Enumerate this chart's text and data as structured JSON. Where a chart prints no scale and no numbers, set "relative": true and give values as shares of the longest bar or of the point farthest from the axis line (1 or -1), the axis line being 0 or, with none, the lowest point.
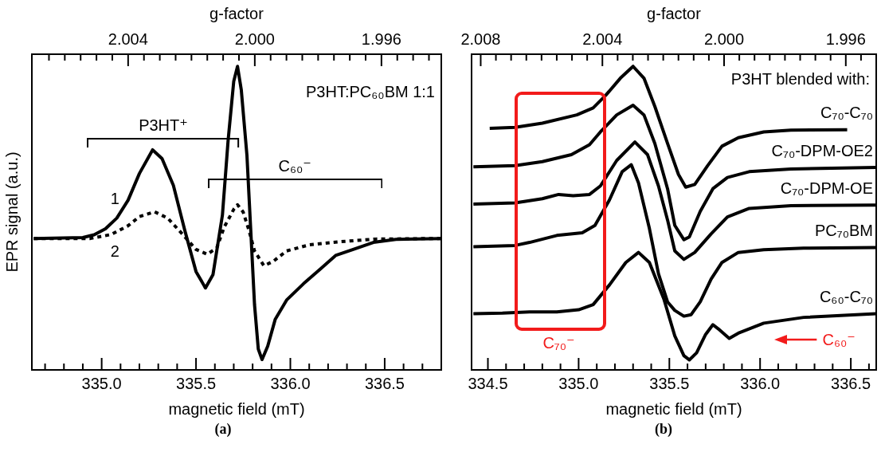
{
  "chart_data": [
    {
      "type": "line",
      "relative": true,
      "xlabel": "magnetic field (mT)",
      "ylabel": "EPR signal (a.u.)",
      "x2label": "g-factor",
      "xlim": [
        334.63,
        336.8
      ],
      "xticks": [
        {
          "value": 334.7,
          "label": null
        },
        {
          "value": 334.8,
          "label": null
        },
        {
          "value": 334.9,
          "label": null
        },
        {
          "value": 335,
          "label": "335.0"
        },
        {
          "value": 335.1,
          "label": null
        },
        {
          "value": 335.2,
          "label": null
        },
        {
          "value": 335.3,
          "label": null
        },
        {
          "value": 335.4,
          "label": null
        },
        335.5,
        {
          "value": 335.6,
          "label": null
        },
        {
          "value": 335.7,
          "label": null
        },
        {
          "value": 335.8,
          "label": null
        },
        {
          "value": 335.9,
          "label": null
        },
        {
          "value": 336,
          "label": "336.0"
        },
        {
          "value": 336.1,
          "label": null
        },
        {
          "value": 336.2,
          "label": null
        },
        {
          "value": 336.3,
          "label": null
        },
        {
          "value": 336.4,
          "label": null
        },
        336.5,
        {
          "value": 336.6,
          "label": null
        },
        {
          "value": 336.7,
          "label": null
        }
      ],
      "x2lim": [
        2.00704,
        1.99411
      ],
      "x2ticks": [
        {
          "value": 2.0065,
          "label": null
        },
        {
          "value": 2.006,
          "label": null
        },
        {
          "value": 2.0055,
          "label": null
        },
        {
          "value": 2.005,
          "label": null
        },
        {
          "value": 2.0045,
          "label": null
        },
        2.004,
        {
          "value": 2.0035,
          "label": null
        },
        {
          "value": 2.003,
          "label": null
        },
        {
          "value": 2.0025,
          "label": null
        },
        {
          "value": 2.002,
          "label": null
        },
        {
          "value": 2.0015,
          "label": null
        },
        {
          "value": 2.001,
          "label": null
        },
        {
          "value": 2.0005,
          "label": null
        },
        {
          "value": 2,
          "label": "2.000"
        },
        {
          "value": 1.9995,
          "label": null
        },
        {
          "value": 1.999,
          "label": null
        },
        {
          "value": 1.9985,
          "label": null
        },
        {
          "value": 1.998,
          "label": null
        },
        {
          "value": 1.9975,
          "label": null
        },
        {
          "value": 1.997,
          "label": null
        },
        {
          "value": 1.9965,
          "label": null
        },
        1.996,
        {
          "value": 1.9955,
          "label": null
        },
        {
          "value": 1.995,
          "label": null
        },
        {
          "value": 1.9945,
          "label": null
        }
      ],
      "series": [
        {
          "color": "#000000",
          "line_style": "solid",
          "x": [
            334.64,
            334.9,
            334.96,
            335.02,
            335.08,
            335.14,
            335.2,
            335.27,
            335.32,
            335.38,
            335.44,
            335.5,
            335.55,
            335.59,
            335.64,
            335.67,
            335.7,
            335.72,
            335.74,
            335.77,
            335.79,
            335.81,
            335.83,
            335.85,
            335.88,
            335.92,
            335.98,
            336.07,
            336.16,
            336.24,
            336.33,
            336.44,
            336.56,
            336.8
          ],
          "values": [
            0.433,
            0.436,
            0.445,
            0.465,
            0.5,
            0.559,
            0.647,
            0.725,
            0.696,
            0.608,
            0.461,
            0.324,
            0.27,
            0.314,
            0.51,
            0.755,
            0.951,
            1,
            0.922,
            0.706,
            0.461,
            0.216,
            0.069,
            0.034,
            0.078,
            0.167,
            0.23,
            0.284,
            0.333,
            0.377,
            0.396,
            0.42,
            0.43,
            0.433
          ]
        },
        {
          "color": "#000000",
          "line_style": "dotted",
          "x": [
            334.64,
            334.94,
            335.05,
            335.14,
            335.2,
            335.28,
            335.35,
            335.43,
            335.5,
            335.56,
            335.61,
            335.65,
            335.7,
            335.72,
            335.75,
            335.78,
            335.81,
            335.86,
            335.91,
            335.98,
            336.1,
            336.26,
            336.45,
            336.8
          ],
          "values": [
            0.433,
            0.433,
            0.446,
            0.475,
            0.505,
            0.521,
            0.5,
            0.446,
            0.397,
            0.381,
            0.402,
            0.471,
            0.529,
            0.544,
            0.52,
            0.461,
            0.392,
            0.343,
            0.358,
            0.392,
            0.412,
            0.422,
            0.431,
            0.433
          ]
        }
      ],
      "annotations": [
        "P3HT:PC₆₀BM 1:1",
        "(a)",
        "P3HT⁺",
        "C₆₀⁻",
        "1",
        "2"
      ]
    },
    {
      "type": "line",
      "relative": true,
      "xlabel": "magnetic field (mT)",
      "x2label": "g-factor",
      "xlim": [
        334.41,
        336.64
      ],
      "xticks": [
        334.5,
        {
          "value": 334.6,
          "label": null
        },
        {
          "value": 334.7,
          "label": null
        },
        {
          "value": 334.8,
          "label": null
        },
        {
          "value": 334.9,
          "label": null
        },
        {
          "value": 335,
          "label": "335.0"
        },
        {
          "value": 335.1,
          "label": null
        },
        {
          "value": 335.2,
          "label": null
        },
        {
          "value": 335.3,
          "label": null
        },
        {
          "value": 335.4,
          "label": null
        },
        335.5,
        {
          "value": 335.6,
          "label": null
        },
        {
          "value": 335.7,
          "label": null
        },
        {
          "value": 335.8,
          "label": null
        },
        {
          "value": 335.9,
          "label": null
        },
        {
          "value": 336,
          "label": "336.0"
        },
        {
          "value": 336.1,
          "label": null
        },
        {
          "value": 336.2,
          "label": null
        },
        {
          "value": 336.3,
          "label": null
        },
        {
          "value": 336.4,
          "label": null
        },
        336.5,
        {
          "value": 336.6,
          "label": null
        }
      ],
      "x2lim": [
        2.0083,
        1.995
      ],
      "x2ticks": [
        2.008,
        {
          "value": 2.0075,
          "label": null
        },
        {
          "value": 2.007,
          "label": null
        },
        {
          "value": 2.0065,
          "label": null
        },
        {
          "value": 2.006,
          "label": null
        },
        {
          "value": 2.0055,
          "label": null
        },
        {
          "value": 2.005,
          "label": null
        },
        {
          "value": 2.0045,
          "label": null
        },
        2.004,
        {
          "value": 2.0035,
          "label": null
        },
        {
          "value": 2.003,
          "label": null
        },
        {
          "value": 2.0025,
          "label": null
        },
        {
          "value": 2.002,
          "label": null
        },
        {
          "value": 2.0015,
          "label": null
        },
        {
          "value": 2.001,
          "label": null
        },
        {
          "value": 2.0005,
          "label": null
        },
        {
          "value": 2,
          "label": "2.000"
        },
        {
          "value": 1.9995,
          "label": null
        },
        {
          "value": 1.999,
          "label": null
        },
        {
          "value": 1.9985,
          "label": null
        },
        {
          "value": 1.998,
          "label": null
        },
        {
          "value": 1.9975,
          "label": null
        },
        {
          "value": 1.997,
          "label": null
        },
        {
          "value": 1.9965,
          "label": null
        },
        1.996,
        {
          "value": 1.9955,
          "label": null
        }
      ],
      "series": [
        {
          "name": "C₇₀-C₇₀",
          "color": "#000000",
          "line_style": "solid",
          "x": [
            334.51,
            334.65,
            334.8,
            334.99,
            335.08,
            335.15,
            335.23,
            335.3,
            335.36,
            335.42,
            335.49,
            335.55,
            335.59,
            335.64,
            335.71,
            335.79,
            335.88,
            336.02,
            336.17,
            336.48
          ],
          "values": [
            0.796,
            0.799,
            0.813,
            0.84,
            0.863,
            0.905,
            0.961,
            1,
            0.961,
            0.868,
            0.746,
            0.644,
            0.602,
            0.611,
            0.672,
            0.737,
            0.765,
            0.784,
            0.79,
            0.791
          ]
        },
        {
          "name": "C₇₀-DPM-OE2",
          "color": "#000000",
          "line_style": "solid",
          "x": [
            334.42,
            334.65,
            334.8,
            334.96,
            335.06,
            335.12,
            335.21,
            335.3,
            335.36,
            335.42,
            335.49,
            335.53,
            335.58,
            335.61,
            335.67,
            335.74,
            335.82,
            335.94,
            336.17,
            336.64
          ],
          "values": [
            0.669,
            0.673,
            0.686,
            0.709,
            0.742,
            0.784,
            0.84,
            0.872,
            0.84,
            0.746,
            0.597,
            0.476,
            0.429,
            0.438,
            0.522,
            0.597,
            0.634,
            0.653,
            0.662,
            0.667
          ]
        },
        {
          "name": "C₇₀-DPM-OE",
          "color": "#000000",
          "line_style": "solid",
          "x": [
            334.42,
            334.65,
            334.8,
            334.89,
            334.97,
            335.06,
            335.12,
            335.21,
            335.31,
            335.38,
            335.44,
            335.49,
            335.53,
            335.58,
            335.64,
            335.73,
            335.82,
            335.94,
            336.17,
            336.64
          ],
          "values": [
            0.546,
            0.55,
            0.564,
            0.578,
            0.574,
            0.578,
            0.606,
            0.69,
            0.751,
            0.709,
            0.606,
            0.494,
            0.392,
            0.364,
            0.387,
            0.448,
            0.504,
            0.532,
            0.541,
            0.543
          ]
        },
        {
          "name": "PC₇₀BM",
          "color": "#000000",
          "line_style": "solid",
          "x": [
            334.42,
            334.65,
            334.73,
            334.88,
            335.02,
            335.09,
            335.17,
            335.24,
            335.29,
            335.33,
            335.39,
            335.44,
            335.49,
            335.53,
            335.58,
            335.62,
            335.67,
            335.73,
            335.79,
            335.88,
            336.02,
            336.24,
            336.64
          ],
          "values": [
            0.406,
            0.41,
            0.42,
            0.443,
            0.452,
            0.476,
            0.56,
            0.653,
            0.676,
            0.616,
            0.466,
            0.317,
            0.224,
            0.196,
            0.177,
            0.182,
            0.224,
            0.299,
            0.354,
            0.387,
            0.396,
            0.401,
            0.403
          ]
        },
        {
          "name": "C₆₀-C₇₀",
          "color": "#000000",
          "line_style": "solid",
          "x": [
            334.42,
            334.58,
            334.73,
            334.88,
            335,
            335.08,
            335.17,
            335.26,
            335.33,
            335.39,
            335.47,
            335.53,
            335.58,
            335.61,
            335.65,
            335.7,
            335.74,
            335.77,
            335.83,
            335.88,
            336.02,
            336.24,
            336.64
          ],
          "values": [
            0.185,
            0.187,
            0.191,
            0.191,
            0.198,
            0.215,
            0.28,
            0.354,
            0.387,
            0.354,
            0.233,
            0.112,
            0.047,
            0.033,
            0.056,
            0.117,
            0.149,
            0.135,
            0.104,
            0.121,
            0.154,
            0.173,
            0.185
          ]
        }
      ],
      "annotations": [
        "P3HT blended with:",
        "(b)",
        "C₇₀⁻",
        "C₆₀⁻"
      ]
    }
  ]
}
